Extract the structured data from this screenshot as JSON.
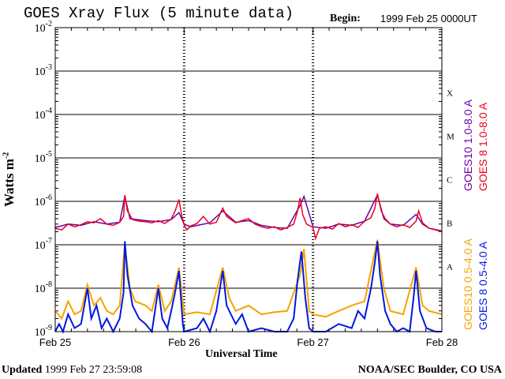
{
  "chart_data": {
    "type": "line",
    "title": "GOES Xray Flux (5 minute data)",
    "begin_label": "Begin:",
    "begin_value": "1999 Feb 25 0000UT",
    "xlabel": "Universal Time",
    "ylabel": "Watts m",
    "ylabel_sup": "-2",
    "y_scale": "log",
    "ylim": [
      1e-09,
      0.01
    ],
    "y_ticks": [
      {
        "value": 0.01,
        "base": "10",
        "exp": "-2"
      },
      {
        "value": 0.001,
        "base": "10",
        "exp": "-3"
      },
      {
        "value": 0.0001,
        "base": "10",
        "exp": "-4"
      },
      {
        "value": 1e-05,
        "base": "10",
        "exp": "-5"
      },
      {
        "value": 1e-06,
        "base": "10",
        "exp": "-6"
      },
      {
        "value": 1e-07,
        "base": "10",
        "exp": "-7"
      },
      {
        "value": 1e-08,
        "base": "10",
        "exp": "-8"
      },
      {
        "value": 1e-09,
        "base": "10",
        "exp": "-9"
      }
    ],
    "x_ticks": [
      "Feb 25",
      "Feb 26",
      "Feb 27",
      "Feb 28"
    ],
    "xlim_days": [
      0,
      3
    ],
    "flare_classes": [
      {
        "label": "X",
        "value": 0.000316
      },
      {
        "label": "M",
        "value": 3.16e-05
      },
      {
        "label": "C",
        "value": 3.16e-06
      },
      {
        "label": "B",
        "value": 3.16e-07
      },
      {
        "label": "A",
        "value": 3.16e-08
      }
    ],
    "grid": "horizontal at each decade",
    "series": [
      {
        "name": "GOES10 1.0-8.0 A",
        "color": "#6a00a8",
        "band": "long",
        "points": [
          [
            0.0,
            2.5e-07
          ],
          [
            0.1,
            3e-07
          ],
          [
            0.2,
            2.8e-07
          ],
          [
            0.3,
            3.4e-07
          ],
          [
            0.4,
            3e-07
          ],
          [
            0.5,
            3.3e-07
          ],
          [
            0.54,
            1.3e-06
          ],
          [
            0.58,
            4e-07
          ],
          [
            0.7,
            3.6e-07
          ],
          [
            0.8,
            3.4e-07
          ],
          [
            0.9,
            3.8e-07
          ],
          [
            0.96,
            5.5e-07
          ],
          [
            1.0,
            3e-07
          ],
          [
            1.05,
            2.6e-07
          ],
          [
            1.2,
            3.2e-07
          ],
          [
            1.3,
            6e-07
          ],
          [
            1.4,
            3.3e-07
          ],
          [
            1.5,
            3.6e-07
          ],
          [
            1.6,
            2.8e-07
          ],
          [
            1.7,
            2.5e-07
          ],
          [
            1.8,
            2.4e-07
          ],
          [
            1.9,
            8e-07
          ],
          [
            1.93,
            1.3e-06
          ],
          [
            2.0,
            2.6e-07
          ],
          [
            2.1,
            2.4e-07
          ],
          [
            2.2,
            3e-07
          ],
          [
            2.3,
            2.8e-07
          ],
          [
            2.4,
            3.5e-07
          ],
          [
            2.5,
            1.4e-06
          ],
          [
            2.55,
            4e-07
          ],
          [
            2.6,
            3e-07
          ],
          [
            2.7,
            2.8e-07
          ],
          [
            2.8,
            5e-07
          ],
          [
            2.85,
            3e-07
          ],
          [
            2.9,
            2.4e-07
          ],
          [
            3.0,
            2.1e-07
          ]
        ]
      },
      {
        "name": "GOES 8 1.0-8.0 A",
        "color": "#e8001c",
        "band": "long",
        "points": [
          [
            0.0,
            2.4e-07
          ],
          [
            0.05,
            2.2e-07
          ],
          [
            0.1,
            3e-07
          ],
          [
            0.15,
            2.6e-07
          ],
          [
            0.2,
            2.9e-07
          ],
          [
            0.25,
            3.4e-07
          ],
          [
            0.3,
            3.2e-07
          ],
          [
            0.35,
            4e-07
          ],
          [
            0.4,
            3e-07
          ],
          [
            0.45,
            2.8e-07
          ],
          [
            0.5,
            3.3e-07
          ],
          [
            0.53,
            4.5e-07
          ],
          [
            0.54,
            1.4e-06
          ],
          [
            0.56,
            6e-07
          ],
          [
            0.6,
            3.8e-07
          ],
          [
            0.65,
            3.5e-07
          ],
          [
            0.7,
            3.4e-07
          ],
          [
            0.75,
            3.2e-07
          ],
          [
            0.8,
            3.6e-07
          ],
          [
            0.85,
            3.1e-07
          ],
          [
            0.9,
            3.9e-07
          ],
          [
            0.93,
            6e-07
          ],
          [
            0.96,
            1.1e-06
          ],
          [
            0.98,
            5e-07
          ],
          [
            1.0,
            2.9e-07
          ],
          [
            1.02,
            2.2e-07
          ],
          [
            1.05,
            2.7e-07
          ],
          [
            1.1,
            3.1e-07
          ],
          [
            1.15,
            4.5e-07
          ],
          [
            1.2,
            3e-07
          ],
          [
            1.25,
            3.3e-07
          ],
          [
            1.3,
            7e-07
          ],
          [
            1.33,
            4.5e-07
          ],
          [
            1.4,
            3.2e-07
          ],
          [
            1.45,
            3.6e-07
          ],
          [
            1.5,
            4e-07
          ],
          [
            1.55,
            3e-07
          ],
          [
            1.6,
            2.6e-07
          ],
          [
            1.65,
            2.4e-07
          ],
          [
            1.7,
            2.6e-07
          ],
          [
            1.75,
            2.2e-07
          ],
          [
            1.8,
            2.5e-07
          ],
          [
            1.85,
            3e-07
          ],
          [
            1.88,
            6e-07
          ],
          [
            1.9,
            1.2e-06
          ],
          [
            1.92,
            5e-07
          ],
          [
            1.95,
            3e-07
          ],
          [
            2.0,
            2.5e-07
          ],
          [
            2.02,
            1.4e-07
          ],
          [
            2.05,
            2.4e-07
          ],
          [
            2.1,
            2.6e-07
          ],
          [
            2.15,
            2.3e-07
          ],
          [
            2.2,
            3.1e-07
          ],
          [
            2.25,
            2.6e-07
          ],
          [
            2.3,
            2.9e-07
          ],
          [
            2.35,
            2.5e-07
          ],
          [
            2.4,
            3.5e-07
          ],
          [
            2.45,
            4.2e-07
          ],
          [
            2.48,
            7e-07
          ],
          [
            2.5,
            1.5e-06
          ],
          [
            2.53,
            6e-07
          ],
          [
            2.56,
            4e-07
          ],
          [
            2.6,
            3e-07
          ],
          [
            2.65,
            2.6e-07
          ],
          [
            2.7,
            2.9e-07
          ],
          [
            2.75,
            2.5e-07
          ],
          [
            2.8,
            3.5e-07
          ],
          [
            2.82,
            6e-07
          ],
          [
            2.85,
            3.2e-07
          ],
          [
            2.9,
            2.4e-07
          ],
          [
            2.95,
            2.2e-07
          ],
          [
            3.0,
            2e-07
          ]
        ]
      },
      {
        "name": "GOES10 0.5-4.0 A",
        "color": "#f5a300",
        "band": "short",
        "points": [
          [
            0.0,
            3e-09
          ],
          [
            0.05,
            2e-09
          ],
          [
            0.1,
            5e-09
          ],
          [
            0.15,
            2.5e-09
          ],
          [
            0.2,
            3e-09
          ],
          [
            0.25,
            1.2e-08
          ],
          [
            0.3,
            4e-09
          ],
          [
            0.35,
            6e-09
          ],
          [
            0.4,
            3e-09
          ],
          [
            0.45,
            2.5e-09
          ],
          [
            0.5,
            4e-09
          ],
          [
            0.54,
            1e-07
          ],
          [
            0.58,
            1e-08
          ],
          [
            0.62,
            5e-09
          ],
          [
            0.7,
            4e-09
          ],
          [
            0.75,
            3e-09
          ],
          [
            0.8,
            1.2e-08
          ],
          [
            0.85,
            3e-09
          ],
          [
            0.9,
            5e-09
          ],
          [
            0.96,
            3e-08
          ],
          [
            1.0,
            2.5e-09
          ],
          [
            1.1,
            2.8e-09
          ],
          [
            1.2,
            2.5e-09
          ],
          [
            1.3,
            3e-08
          ],
          [
            1.35,
            6e-09
          ],
          [
            1.4,
            3e-09
          ],
          [
            1.5,
            4e-09
          ],
          [
            1.6,
            2.5e-09
          ],
          [
            1.7,
            2.8e-09
          ],
          [
            1.8,
            3e-09
          ],
          [
            1.9,
            2e-08
          ],
          [
            1.93,
            8e-08
          ],
          [
            1.97,
            3e-09
          ],
          [
            2.0,
            2.5e-09
          ],
          [
            2.1,
            2.2e-09
          ],
          [
            2.2,
            3e-09
          ],
          [
            2.3,
            4e-09
          ],
          [
            2.4,
            5e-09
          ],
          [
            2.5,
            1.3e-07
          ],
          [
            2.55,
            1e-08
          ],
          [
            2.6,
            3e-09
          ],
          [
            2.7,
            2.5e-09
          ],
          [
            2.8,
            3e-08
          ],
          [
            2.85,
            4e-09
          ],
          [
            2.9,
            3e-09
          ],
          [
            3.0,
            2.5e-09
          ]
        ]
      },
      {
        "name": "GOES 8 0.5-4.0 A",
        "color": "#0018e0",
        "band": "short",
        "points": [
          [
            0.0,
            1e-09
          ],
          [
            0.03,
            1.5e-09
          ],
          [
            0.06,
            1e-09
          ],
          [
            0.1,
            2.5e-09
          ],
          [
            0.15,
            1.2e-09
          ],
          [
            0.2,
            1.5e-09
          ],
          [
            0.25,
            1e-08
          ],
          [
            0.28,
            2e-09
          ],
          [
            0.32,
            4e-09
          ],
          [
            0.36,
            1.2e-09
          ],
          [
            0.4,
            2e-09
          ],
          [
            0.45,
            1e-09
          ],
          [
            0.5,
            2e-09
          ],
          [
            0.53,
            8e-09
          ],
          [
            0.54,
            1.2e-07
          ],
          [
            0.56,
            2e-08
          ],
          [
            0.6,
            4e-09
          ],
          [
            0.65,
            2e-09
          ],
          [
            0.7,
            1.5e-09
          ],
          [
            0.75,
            1e-09
          ],
          [
            0.8,
            1e-08
          ],
          [
            0.83,
            2e-09
          ],
          [
            0.87,
            1.2e-09
          ],
          [
            0.9,
            3e-09
          ],
          [
            0.93,
            8e-09
          ],
          [
            0.96,
            2.5e-08
          ],
          [
            0.99,
            1.5e-09
          ],
          [
            1.0,
            1e-09
          ],
          [
            1.1,
            1.2e-09
          ],
          [
            1.15,
            2e-09
          ],
          [
            1.2,
            1e-09
          ],
          [
            1.25,
            3e-09
          ],
          [
            1.3,
            2.5e-08
          ],
          [
            1.33,
            4e-09
          ],
          [
            1.4,
            1.5e-09
          ],
          [
            1.45,
            2.5e-09
          ],
          [
            1.5,
            1e-09
          ],
          [
            1.6,
            1.2e-09
          ],
          [
            1.7,
            1e-09
          ],
          [
            1.8,
            1e-09
          ],
          [
            1.85,
            2e-09
          ],
          [
            1.88,
            1.5e-08
          ],
          [
            1.91,
            7e-08
          ],
          [
            1.94,
            6e-09
          ],
          [
            1.97,
            1.2e-09
          ],
          [
            2.0,
            1e-09
          ],
          [
            2.1,
            1e-09
          ],
          [
            2.2,
            1.5e-09
          ],
          [
            2.3,
            1.2e-09
          ],
          [
            2.35,
            3e-09
          ],
          [
            2.4,
            2e-09
          ],
          [
            2.45,
            1e-08
          ],
          [
            2.48,
            4e-08
          ],
          [
            2.5,
            1.2e-07
          ],
          [
            2.52,
            2e-08
          ],
          [
            2.56,
            3e-09
          ],
          [
            2.6,
            1.5e-09
          ],
          [
            2.65,
            1e-09
          ],
          [
            2.7,
            1.2e-09
          ],
          [
            2.75,
            1e-09
          ],
          [
            2.78,
            6e-09
          ],
          [
            2.8,
            2.5e-08
          ],
          [
            2.83,
            3e-09
          ],
          [
            2.88,
            1.2e-09
          ],
          [
            2.95,
            1e-09
          ],
          [
            3.0,
            1e-09
          ]
        ]
      }
    ]
  },
  "footer": {
    "updated_label": "Updated",
    "updated_value": "1999 Feb 27 23:59:08",
    "source": "NOAA/SEC Boulder, CO USA"
  }
}
